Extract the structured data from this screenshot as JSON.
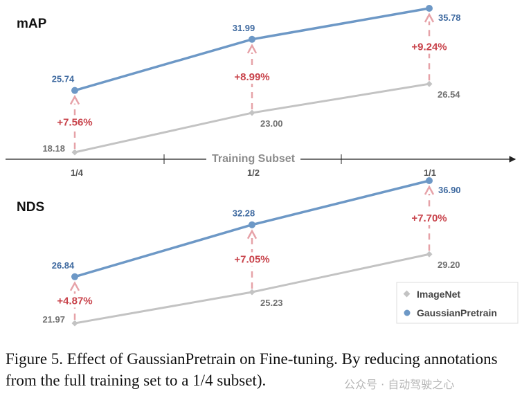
{
  "chart_data": [
    {
      "type": "line",
      "title": "mAP",
      "categories": [
        "1/4",
        "1/2",
        "1/1"
      ],
      "series": [
        {
          "name": "ImageNet",
          "values": [
            18.18,
            23.0,
            26.54
          ],
          "labels": [
            "18.18",
            "23.00",
            "26.54"
          ],
          "color": "#c3c3c3",
          "marker": "diamond"
        },
        {
          "name": "GaussianPretrain",
          "values": [
            25.74,
            31.99,
            35.78
          ],
          "labels": [
            "25.74",
            "31.99",
            "35.78"
          ],
          "color": "#6d98c6",
          "marker": "circle"
        }
      ],
      "improvements": [
        "+7.56%",
        "+8.99%",
        "+9.24%"
      ]
    },
    {
      "type": "line",
      "title": "NDS",
      "categories": [
        "1/4",
        "1/2",
        "1/1"
      ],
      "series": [
        {
          "name": "ImageNet",
          "values": [
            21.97,
            25.23,
            29.2
          ],
          "labels": [
            "21.97",
            "25.23",
            "29.20"
          ],
          "color": "#c3c3c3",
          "marker": "diamond"
        },
        {
          "name": "GaussianPretrain",
          "values": [
            26.84,
            32.28,
            36.9
          ],
          "labels": [
            "26.84",
            "32.28",
            "36.90"
          ],
          "color": "#6d98c6",
          "marker": "circle"
        }
      ],
      "improvements": [
        "+4.87%",
        "+7.05%",
        "+7.70%"
      ]
    }
  ],
  "axis": {
    "label": "Training Subset",
    "ticks": [
      "1/4",
      "1/2",
      "1/1"
    ]
  },
  "legend": {
    "position": "bottom-right",
    "entries": [
      "ImageNet",
      "GaussianPretrain"
    ]
  },
  "colors": {
    "improvement": "#c8424a",
    "arrow": "#e6a2a8",
    "value_blue": "#3f6aa0",
    "value_gray": "#707070",
    "axis": "#222222"
  },
  "caption": "Figure 5. Effect of GaussianPretrain on Fine-tuning. By reducing annotations from the full training set to a 1/4 subset).",
  "watermark": "公众号 · 自动驾驶之心"
}
